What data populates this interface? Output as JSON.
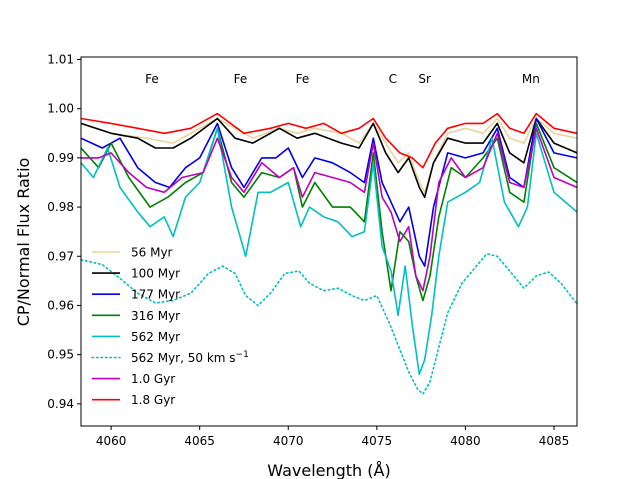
{
  "chart_data": {
    "type": "line",
    "title": "",
    "xlabel": "Wavelength ($\\AA$)",
    "xlabel_display": "Wavelength (Å)",
    "ylabel": "CP/Normal Flux Ratio",
    "xlim": [
      4058.3,
      4086.3
    ],
    "ylim": [
      0.9355,
      1.0105
    ],
    "xticks": [
      4060,
      4065,
      4070,
      4075,
      4080,
      4085
    ],
    "yticks": [
      0.94,
      0.95,
      0.96,
      0.97,
      0.98,
      0.99,
      1.0,
      1.01
    ],
    "ytick_labels": [
      "0.94",
      "0.95",
      "0.96",
      "0.97",
      "0.98",
      "0.99",
      "1.00",
      "1.01"
    ],
    "element_labels": [
      {
        "text": "Fe",
        "x": 4062.3
      },
      {
        "text": "Fe",
        "x": 4067.3
      },
      {
        "text": "Fe",
        "x": 4070.8
      },
      {
        "text": "C",
        "x": 4075.9
      },
      {
        "text": "Sr",
        "x": 4077.7
      },
      {
        "text": "Mn",
        "x": 4083.7
      }
    ],
    "legend_position": "lower-left",
    "series": [
      {
        "name": "56 Myr",
        "color": "#e8d49c",
        "style": "solid",
        "x": [
          4058.3,
          4060,
          4062,
          4063.5,
          4064.5,
          4066,
          4067,
          4068,
          4069.5,
          4070.5,
          4071.5,
          4073,
          4074,
          4074.8,
          4075.5,
          4076.2,
          4076.8,
          4077.4,
          4077.7,
          4078.2,
          4079,
          4080,
          4081,
          4081.8,
          4082.5,
          4083.3,
          4084,
          4085,
          4086.3
        ],
        "y": [
          0.997,
          0.995,
          0.994,
          0.993,
          0.995,
          0.998,
          0.996,
          0.994,
          0.996,
          0.995,
          0.996,
          0.995,
          0.993,
          0.997,
          0.993,
          0.989,
          0.991,
          0.985,
          0.983,
          0.989,
          0.995,
          0.996,
          0.995,
          0.998,
          0.994,
          0.993,
          0.998,
          0.995,
          0.994
        ]
      },
      {
        "name": "100 Myr",
        "color": "#000000",
        "style": "solid",
        "x": [
          4058.3,
          4060,
          4061.5,
          4062.5,
          4063.5,
          4064.5,
          4066,
          4067,
          4068,
          4069.5,
          4070.5,
          4071.5,
          4073,
          4074,
          4074.8,
          4075.5,
          4076.2,
          4076.8,
          4077.4,
          4077.7,
          4078.2,
          4079,
          4080,
          4081,
          4081.8,
          4082.5,
          4083.3,
          4084,
          4085,
          4086.3
        ],
        "y": [
          0.997,
          0.995,
          0.994,
          0.992,
          0.992,
          0.994,
          0.998,
          0.994,
          0.993,
          0.996,
          0.994,
          0.995,
          0.993,
          0.992,
          0.997,
          0.991,
          0.987,
          0.99,
          0.984,
          0.982,
          0.989,
          0.994,
          0.993,
          0.993,
          0.997,
          0.991,
          0.989,
          0.998,
          0.993,
          0.991
        ]
      },
      {
        "name": "177 Myr",
        "color": "#0000ee",
        "style": "solid",
        "x": [
          4058.3,
          4059.5,
          4060.5,
          4061.5,
          4062.5,
          4063.3,
          4064.2,
          4065,
          4066,
          4066.8,
          4067.5,
          4068.5,
          4069.3,
          4070,
          4070.8,
          4071.5,
          4072.5,
          4073.5,
          4074.3,
          4074.8,
          4075.3,
          4075.8,
          4076.3,
          4076.8,
          4077.4,
          4077.7,
          4078.2,
          4079,
          4080,
          4081,
          4081.8,
          4082.5,
          4083.3,
          4084,
          4085,
          4086.3
        ],
        "y": [
          0.994,
          0.992,
          0.994,
          0.988,
          0.985,
          0.984,
          0.988,
          0.99,
          0.997,
          0.988,
          0.984,
          0.99,
          0.99,
          0.992,
          0.986,
          0.99,
          0.989,
          0.987,
          0.985,
          0.994,
          0.985,
          0.981,
          0.977,
          0.98,
          0.97,
          0.968,
          0.98,
          0.991,
          0.99,
          0.991,
          0.996,
          0.986,
          0.984,
          0.998,
          0.991,
          0.99
        ]
      },
      {
        "name": "316 Myr",
        "color": "#008000",
        "style": "solid",
        "x": [
          4058.3,
          4059.3,
          4060,
          4061,
          4062.2,
          4063.2,
          4064.2,
          4065.2,
          4066,
          4066.8,
          4067.5,
          4068.5,
          4069.5,
          4070.3,
          4070.8,
          4071.5,
          4072.5,
          4073.5,
          4074.3,
          4074.8,
          4075.3,
          4075.8,
          4076.3,
          4076.8,
          4077.2,
          4077.6,
          4078,
          4078.5,
          4079.2,
          4080,
          4081,
          4081.8,
          4082.5,
          4083.3,
          4084,
          4085,
          4086.3
        ],
        "y": [
          0.992,
          0.988,
          0.993,
          0.986,
          0.98,
          0.982,
          0.985,
          0.987,
          0.996,
          0.985,
          0.982,
          0.987,
          0.986,
          0.988,
          0.98,
          0.985,
          0.98,
          0.98,
          0.977,
          0.991,
          0.975,
          0.963,
          0.975,
          0.973,
          0.966,
          0.961,
          0.966,
          0.978,
          0.988,
          0.986,
          0.99,
          0.994,
          0.983,
          0.981,
          0.997,
          0.988,
          0.985
        ]
      },
      {
        "name": "562 Myr",
        "color": "#00bfbf",
        "style": "solid",
        "x": [
          4058.3,
          4059,
          4059.8,
          4060.5,
          4061.5,
          4062.2,
          4063,
          4063.5,
          4064.2,
          4065,
          4066,
          4066.8,
          4067.2,
          4067.6,
          4068.3,
          4069,
          4070,
          4070.7,
          4071.2,
          4072,
          4072.8,
          4073.6,
          4074.3,
          4074.8,
          4075.3,
          4075.8,
          4076.2,
          4076.6,
          4077,
          4077.4,
          4077.7,
          4078.1,
          4078.5,
          4079,
          4080,
          4080.8,
          4081.5,
          4082.2,
          4083,
          4083.5,
          4084,
          4085,
          4086.3
        ],
        "y": [
          0.989,
          0.986,
          0.992,
          0.984,
          0.979,
          0.976,
          0.978,
          0.974,
          0.982,
          0.985,
          0.996,
          0.98,
          0.975,
          0.97,
          0.983,
          0.983,
          0.985,
          0.976,
          0.98,
          0.978,
          0.977,
          0.974,
          0.975,
          0.989,
          0.972,
          0.967,
          0.958,
          0.968,
          0.956,
          0.946,
          0.949,
          0.958,
          0.97,
          0.981,
          0.983,
          0.985,
          0.994,
          0.981,
          0.976,
          0.98,
          0.995,
          0.983,
          0.979
        ]
      },
      {
        "name": "562 Myr, 50 km s$^{-1}$",
        "name_display": "562 Myr, 50 km s",
        "name_sup": "−1",
        "color": "#00bfbf",
        "style": "dotted",
        "x": [
          4058.3,
          4059.5,
          4060.5,
          4061.5,
          4062.5,
          4063.5,
          4064.5,
          4065.5,
          4066.3,
          4067,
          4067.6,
          4068.3,
          4069,
          4069.8,
          4070.6,
          4071.2,
          4072,
          4072.8,
          4073.6,
          4074.3,
          4075,
          4075.7,
          4076.3,
          4076.8,
          4077.3,
          4077.6,
          4078,
          4078.5,
          4079,
          4079.8,
          4080.5,
          4081.2,
          4081.8,
          4082.5,
          4083.3,
          4084,
          4084.7,
          4085.4,
          4086.3
        ],
        "y": [
          0.9693,
          0.9683,
          0.9655,
          0.9625,
          0.9605,
          0.961,
          0.9625,
          0.9665,
          0.968,
          0.9665,
          0.962,
          0.96,
          0.9625,
          0.9665,
          0.967,
          0.9645,
          0.963,
          0.9635,
          0.962,
          0.961,
          0.962,
          0.9565,
          0.951,
          0.9465,
          0.943,
          0.942,
          0.9445,
          0.9515,
          0.9585,
          0.9645,
          0.9675,
          0.9705,
          0.97,
          0.967,
          0.9635,
          0.966,
          0.9668,
          0.9645,
          0.9603
        ]
      },
      {
        "name": "1.0 Gyr",
        "color": "#bf00bf",
        "style": "solid",
        "x": [
          4058.3,
          4059.3,
          4060,
          4061,
          4062,
          4063,
          4064,
          4065.2,
          4066,
          4066.8,
          4067.5,
          4068.5,
          4069.5,
          4070.3,
          4070.8,
          4071.5,
          4072.5,
          4073.5,
          4074.3,
          4074.8,
          4075.3,
          4075.8,
          4076.3,
          4076.8,
          4077.2,
          4077.6,
          4078,
          4078.5,
          4079.2,
          4080,
          4081,
          4081.8,
          4082.5,
          4083.3,
          4084,
          4085,
          4086.3
        ],
        "y": [
          0.99,
          0.99,
          0.991,
          0.987,
          0.984,
          0.983,
          0.986,
          0.987,
          0.994,
          0.986,
          0.983,
          0.989,
          0.986,
          0.988,
          0.982,
          0.987,
          0.986,
          0.985,
          0.983,
          0.993,
          0.982,
          0.979,
          0.973,
          0.976,
          0.966,
          0.963,
          0.97,
          0.985,
          0.99,
          0.986,
          0.988,
          0.995,
          0.985,
          0.984,
          0.996,
          0.986,
          0.984
        ]
      },
      {
        "name": "1.8 Gyr",
        "color": "#ff0000",
        "style": "solid",
        "x": [
          4058.3,
          4060,
          4061.5,
          4063,
          4064.5,
          4066,
          4067.5,
          4069,
          4070,
          4071,
          4072,
          4073,
          4074,
          4074.8,
          4075.5,
          4076.3,
          4077,
          4077.6,
          4078.3,
          4079,
          4080,
          4081,
          4081.8,
          4082.5,
          4083.3,
          4084,
          4085,
          4086.3
        ],
        "y": [
          0.998,
          0.997,
          0.996,
          0.995,
          0.996,
          0.999,
          0.995,
          0.996,
          0.997,
          0.996,
          0.997,
          0.995,
          0.996,
          0.998,
          0.994,
          0.991,
          0.99,
          0.988,
          0.993,
          0.996,
          0.997,
          0.997,
          0.999,
          0.996,
          0.995,
          0.999,
          0.996,
          0.995
        ]
      }
    ]
  }
}
